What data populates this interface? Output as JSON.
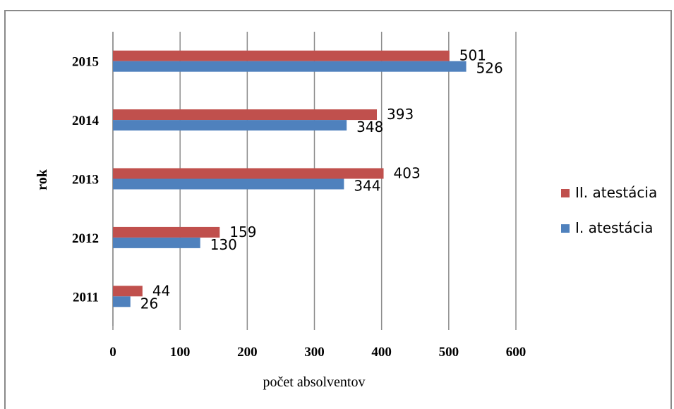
{
  "chart_data": {
    "type": "bar",
    "orientation": "horizontal",
    "categories": [
      "2011",
      "2012",
      "2013",
      "2014",
      "2015"
    ],
    "series": [
      {
        "name": "II. atestácia",
        "color": "#c0504d",
        "values": [
          44,
          159,
          403,
          393,
          501
        ]
      },
      {
        "name": "I. atestácia",
        "color": "#4f81bd",
        "values": [
          26,
          130,
          344,
          348,
          526
        ]
      }
    ],
    "xlabel": "počet absolventov",
    "ylabel": "rok",
    "xlim": [
      0,
      600
    ],
    "xticks": [
      0,
      100,
      200,
      300,
      400,
      500,
      600
    ],
    "grid": true,
    "legend": "right"
  }
}
